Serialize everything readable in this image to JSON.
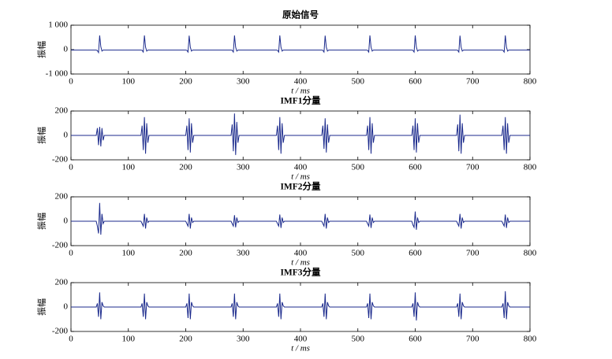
{
  "chart_data": [
    {
      "type": "line",
      "title": "原始信号",
      "xlabel": "t / ms",
      "ylabel": "振幅",
      "color": "#1b2a8c",
      "xlim": [
        0,
        800
      ],
      "xticks": [
        0,
        100,
        200,
        300,
        400,
        500,
        600,
        700,
        800
      ],
      "ylim": [
        -1000,
        1000
      ],
      "yticks": [
        {
          "value": -1000,
          "label": "-1 000"
        },
        0,
        {
          "value": 1000,
          "label": "1 000"
        }
      ],
      "x": [
        0,
        44,
        46,
        48,
        50,
        52,
        54,
        56,
        58,
        122,
        124,
        126,
        128,
        130,
        132,
        134,
        136,
        200,
        202,
        204,
        206,
        208,
        210,
        212,
        214,
        279,
        281,
        283,
        285,
        287,
        289,
        291,
        293,
        358,
        360,
        362,
        364,
        366,
        368,
        370,
        372,
        437,
        439,
        441,
        443,
        445,
        447,
        449,
        451,
        515,
        517,
        519,
        521,
        523,
        525,
        527,
        529,
        594,
        596,
        598,
        600,
        602,
        604,
        606,
        608,
        672,
        674,
        676,
        678,
        680,
        682,
        684,
        686,
        751,
        753,
        755,
        757,
        759,
        761,
        763,
        765,
        800
      ],
      "values": [
        -20,
        -20,
        -40,
        -120,
        580,
        120,
        -60,
        -20,
        -20,
        -20,
        -30,
        -100,
        580,
        100,
        -60,
        -20,
        -20,
        -20,
        -30,
        -100,
        570,
        100,
        -60,
        -20,
        -20,
        -20,
        -30,
        -100,
        580,
        100,
        -60,
        -20,
        -20,
        -20,
        -30,
        -100,
        580,
        100,
        -60,
        -20,
        -20,
        -20,
        -30,
        -100,
        570,
        100,
        -60,
        -20,
        -20,
        -20,
        -30,
        -100,
        580,
        100,
        -60,
        -20,
        -20,
        -20,
        -30,
        -100,
        580,
        100,
        -60,
        -20,
        -20,
        -20,
        -30,
        -100,
        570,
        100,
        -60,
        -20,
        -20,
        -20,
        -30,
        -100,
        580,
        100,
        -60,
        -20,
        -20,
        -20
      ]
    },
    {
      "type": "line",
      "title": "IMF1分量",
      "xlabel": "t / ms",
      "ylabel": "振幅",
      "color": "#1b2a8c",
      "xlim": [
        0,
        800
      ],
      "xticks": [
        0,
        100,
        200,
        300,
        400,
        500,
        600,
        700,
        800
      ],
      "ylim": [
        -200,
        200
      ],
      "yticks": [
        -200,
        0,
        200
      ],
      "x": [
        0,
        44,
        46,
        48,
        50,
        52,
        54,
        56,
        58,
        122,
        124,
        126,
        128,
        130,
        132,
        134,
        136,
        200,
        202,
        204,
        206,
        208,
        210,
        212,
        214,
        279,
        281,
        283,
        285,
        287,
        289,
        291,
        293,
        358,
        360,
        362,
        364,
        366,
        368,
        370,
        372,
        437,
        439,
        441,
        443,
        445,
        447,
        449,
        451,
        515,
        517,
        519,
        521,
        523,
        525,
        527,
        529,
        594,
        596,
        598,
        600,
        602,
        604,
        606,
        608,
        672,
        674,
        676,
        678,
        680,
        682,
        684,
        686,
        751,
        753,
        755,
        757,
        759,
        761,
        763,
        765,
        800
      ],
      "values": [
        0,
        0,
        60,
        -80,
        70,
        -90,
        60,
        -40,
        0,
        0,
        80,
        -120,
        150,
        -150,
        100,
        -60,
        0,
        0,
        80,
        -120,
        140,
        -140,
        100,
        -60,
        0,
        0,
        90,
        -130,
        180,
        -160,
        110,
        -60,
        0,
        0,
        80,
        -120,
        150,
        -150,
        100,
        -60,
        0,
        0,
        80,
        -110,
        140,
        -140,
        90,
        -60,
        0,
        0,
        80,
        -120,
        150,
        -150,
        100,
        -60,
        0,
        0,
        80,
        -120,
        140,
        -140,
        100,
        -60,
        0,
        0,
        90,
        -130,
        170,
        -150,
        100,
        -60,
        0,
        0,
        80,
        -120,
        150,
        -150,
        100,
        -60,
        0,
        0
      ]
    },
    {
      "type": "line",
      "title": "IMF2分量",
      "xlabel": "t / ms",
      "ylabel": "振幅",
      "color": "#1b2a8c",
      "xlim": [
        0,
        800
      ],
      "xticks": [
        0,
        100,
        200,
        300,
        400,
        500,
        600,
        700,
        800
      ],
      "ylim": [
        -200,
        200
      ],
      "yticks": [
        -200,
        0,
        200
      ],
      "x": [
        0,
        44,
        46,
        48,
        50,
        52,
        54,
        56,
        58,
        122,
        124,
        126,
        128,
        130,
        132,
        134,
        136,
        200,
        202,
        204,
        206,
        208,
        210,
        212,
        214,
        279,
        281,
        283,
        285,
        287,
        289,
        291,
        293,
        358,
        360,
        362,
        364,
        366,
        368,
        370,
        372,
        437,
        439,
        441,
        443,
        445,
        447,
        449,
        451,
        515,
        517,
        519,
        521,
        523,
        525,
        527,
        529,
        594,
        596,
        598,
        600,
        602,
        604,
        606,
        608,
        672,
        674,
        676,
        678,
        680,
        682,
        684,
        686,
        751,
        753,
        755,
        757,
        759,
        761,
        763,
        765,
        800
      ],
      "values": [
        0,
        0,
        -40,
        -100,
        150,
        -110,
        60,
        -20,
        0,
        0,
        -20,
        -40,
        60,
        -60,
        30,
        -10,
        0,
        0,
        -20,
        -40,
        60,
        -60,
        30,
        -10,
        0,
        0,
        -20,
        -40,
        50,
        -50,
        30,
        -10,
        0,
        0,
        -20,
        -40,
        55,
        -55,
        30,
        -10,
        0,
        0,
        -20,
        -40,
        60,
        -60,
        30,
        -10,
        0,
        0,
        -20,
        -40,
        55,
        -55,
        30,
        -10,
        0,
        0,
        -30,
        -50,
        80,
        -70,
        30,
        -10,
        0,
        0,
        -20,
        -40,
        60,
        -60,
        30,
        -10,
        0,
        0,
        -20,
        -40,
        55,
        -55,
        30,
        -10,
        0,
        0
      ]
    },
    {
      "type": "line",
      "title": "IMF3分量",
      "xlabel": "t / ms",
      "ylabel": "振幅",
      "color": "#1b2a8c",
      "xlim": [
        0,
        800
      ],
      "xticks": [
        0,
        100,
        200,
        300,
        400,
        500,
        600,
        700,
        800
      ],
      "ylim": [
        -200,
        200
      ],
      "yticks": [
        -200,
        0,
        200
      ],
      "x": [
        0,
        44,
        46,
        48,
        50,
        52,
        54,
        56,
        58,
        122,
        124,
        126,
        128,
        130,
        132,
        134,
        136,
        200,
        202,
        204,
        206,
        208,
        210,
        212,
        214,
        279,
        281,
        283,
        285,
        287,
        289,
        291,
        293,
        358,
        360,
        362,
        364,
        366,
        368,
        370,
        372,
        437,
        439,
        441,
        443,
        445,
        447,
        449,
        451,
        515,
        517,
        519,
        521,
        523,
        525,
        527,
        529,
        594,
        596,
        598,
        600,
        602,
        604,
        606,
        608,
        672,
        674,
        676,
        678,
        680,
        682,
        684,
        686,
        751,
        753,
        755,
        757,
        759,
        761,
        763,
        765,
        800
      ],
      "values": [
        0,
        0,
        30,
        -80,
        120,
        -100,
        40,
        10,
        0,
        0,
        30,
        -80,
        110,
        -100,
        40,
        10,
        0,
        0,
        30,
        -90,
        110,
        -100,
        40,
        10,
        0,
        0,
        30,
        -80,
        110,
        -100,
        40,
        10,
        0,
        0,
        30,
        -80,
        110,
        -100,
        40,
        10,
        0,
        0,
        30,
        -80,
        110,
        -100,
        40,
        10,
        0,
        0,
        30,
        -90,
        110,
        -100,
        40,
        10,
        0,
        0,
        30,
        -80,
        120,
        -110,
        40,
        10,
        0,
        0,
        30,
        -80,
        110,
        -100,
        40,
        10,
        0,
        0,
        30,
        -90,
        130,
        -100,
        40,
        10,
        0,
        0
      ]
    }
  ]
}
